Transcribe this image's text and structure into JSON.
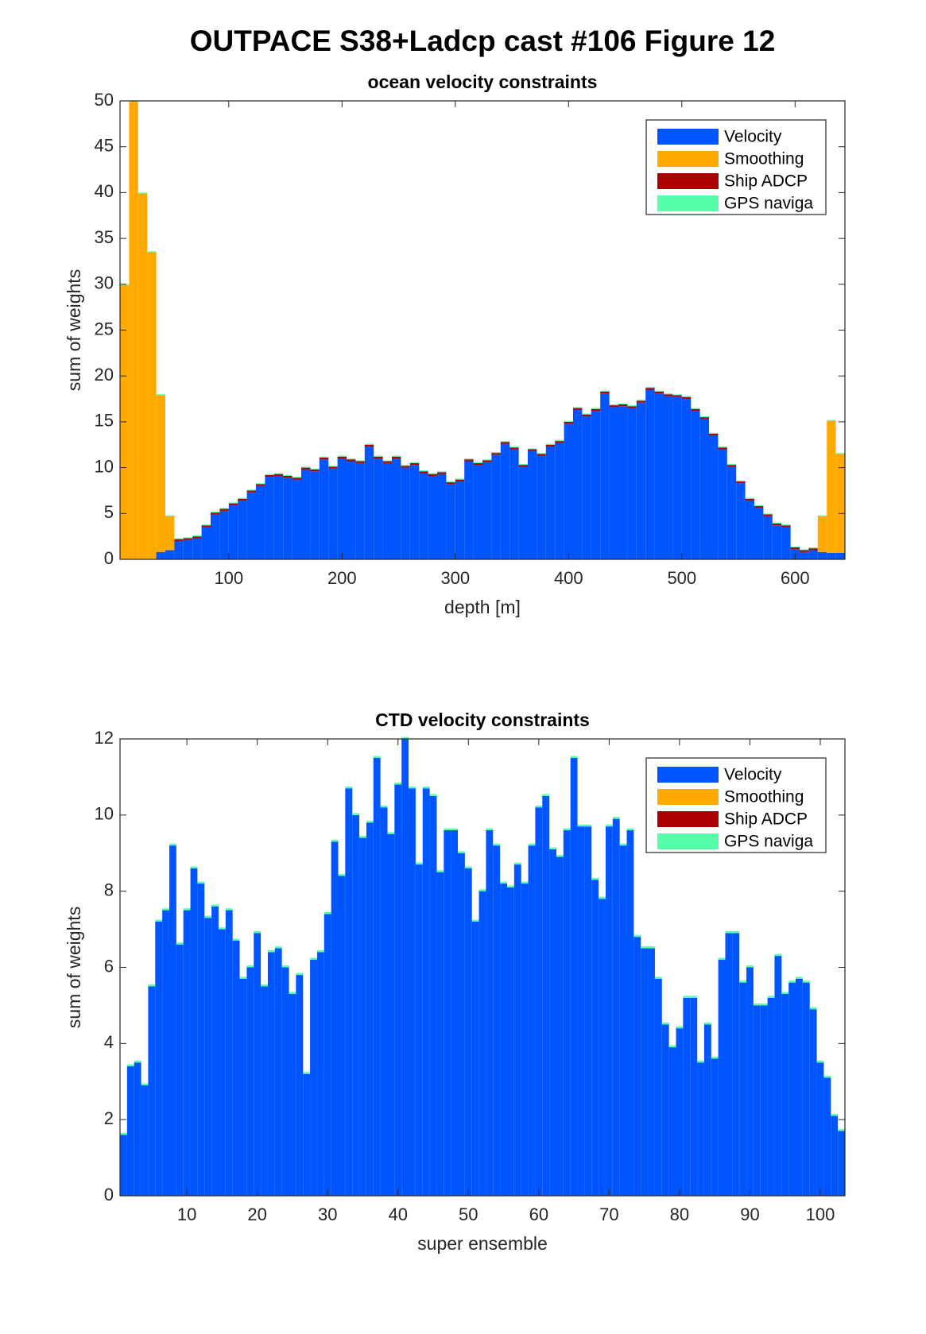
{
  "chart_data": [
    {
      "type": "bar",
      "stacked": true,
      "suptitle": "OUTPACE S38+Ladcp cast #106  Figure 12",
      "title": "ocean velocity constraints",
      "xlabel": "depth [m]",
      "ylabel": "sum of weights",
      "x": [
        8,
        16,
        24,
        32,
        40,
        48,
        56,
        64,
        72,
        80,
        88,
        96,
        104,
        112,
        120,
        128,
        136,
        144,
        152,
        160,
        168,
        176,
        184,
        192,
        200,
        208,
        216,
        224,
        232,
        240,
        248,
        256,
        264,
        272,
        280,
        288,
        296,
        304,
        312,
        320,
        328,
        336,
        344,
        352,
        360,
        368,
        376,
        384,
        392,
        400,
        408,
        416,
        424,
        432,
        440,
        448,
        456,
        464,
        472,
        480,
        488,
        496,
        504,
        512,
        520,
        528,
        536,
        544,
        552,
        560,
        568,
        576,
        584,
        592,
        600,
        608,
        616,
        624,
        632,
        640
      ],
      "xlim": [
        4,
        644
      ],
      "xticks": [
        100,
        200,
        300,
        400,
        500,
        600
      ],
      "ylim": [
        0,
        50
      ],
      "yticks": [
        0,
        5,
        10,
        15,
        20,
        25,
        30,
        35,
        40,
        45,
        50
      ],
      "legend": "upper right",
      "series": [
        {
          "name": "Velocity",
          "color": "#0055ff",
          "values": [
            0,
            0,
            0,
            0,
            0.8,
            1.0,
            2.0,
            2.1,
            2.3,
            3.5,
            4.9,
            5.3,
            5.9,
            6.4,
            7.3,
            8.0,
            9.0,
            9.1,
            8.9,
            8.7,
            9.8,
            9.6,
            10.9,
            9.9,
            11.0,
            10.7,
            10.5,
            12.3,
            11.0,
            10.5,
            11.0,
            10.0,
            10.3,
            9.4,
            9.1,
            9.3,
            8.2,
            8.5,
            10.7,
            10.3,
            10.6,
            11.4,
            12.6,
            12.0,
            10.1,
            11.8,
            11.3,
            12.3,
            12.7,
            14.8,
            16.3,
            15.6,
            16.2,
            18.1,
            16.6,
            16.7,
            16.5,
            17.1,
            18.5,
            18.1,
            17.8,
            17.7,
            17.5,
            16.2,
            15.3,
            13.5,
            12.0,
            10.1,
            8.3,
            6.4,
            5.6,
            4.7,
            3.7,
            3.5,
            1.1,
            0.8,
            1.0,
            0.8,
            0.7,
            0.7
          ]
        },
        {
          "name": "Smoothing",
          "color": "#ffaa00",
          "values": [
            29.9,
            49.9,
            39.9,
            33.5,
            17.1,
            3.7,
            0,
            0,
            0,
            0,
            0,
            0,
            0,
            0,
            0,
            0,
            0,
            0,
            0,
            0,
            0,
            0,
            0,
            0,
            0,
            0,
            0,
            0,
            0,
            0,
            0,
            0,
            0,
            0,
            0,
            0,
            0,
            0,
            0,
            0,
            0,
            0,
            0,
            0,
            0,
            0,
            0,
            0,
            0,
            0,
            0,
            0,
            0,
            0,
            0,
            0,
            0,
            0,
            0,
            0,
            0,
            0,
            0,
            0,
            0,
            0,
            0,
            0,
            0,
            0,
            0,
            0,
            0,
            0,
            0,
            0,
            0,
            3.9,
            14.4,
            10.8
          ]
        },
        {
          "name": "Ship ADCP",
          "color": "#aa0000",
          "values": [
            0,
            0,
            0,
            0,
            0,
            0,
            0.2,
            0.2,
            0.2,
            0.2,
            0.2,
            0.2,
            0.2,
            0.2,
            0.2,
            0.2,
            0.2,
            0.2,
            0.2,
            0.2,
            0.2,
            0.2,
            0.2,
            0.2,
            0.2,
            0.2,
            0.2,
            0.2,
            0.2,
            0.2,
            0.2,
            0.2,
            0.2,
            0.2,
            0.2,
            0.2,
            0.2,
            0.2,
            0.2,
            0.2,
            0.2,
            0.2,
            0.2,
            0.2,
            0.2,
            0.2,
            0.2,
            0.2,
            0.2,
            0.2,
            0.2,
            0.2,
            0.2,
            0.2,
            0.2,
            0.2,
            0.2,
            0.2,
            0.2,
            0.2,
            0.2,
            0.2,
            0.2,
            0.2,
            0.2,
            0.2,
            0.2,
            0.2,
            0.2,
            0.2,
            0.2,
            0.2,
            0.2,
            0.2,
            0.2,
            0.2,
            0.2,
            0,
            0,
            0
          ]
        },
        {
          "name": "GPS naviga",
          "color": "#55ffaa",
          "values": [
            0.1,
            0.1,
            0.1,
            0.1,
            0.1,
            0.1,
            0.1,
            0.1,
            0.1,
            0.1,
            0.1,
            0.1,
            0.1,
            0.1,
            0.1,
            0.1,
            0.1,
            0.1,
            0.1,
            0.1,
            0.1,
            0.1,
            0.1,
            0.1,
            0.1,
            0.1,
            0.1,
            0.1,
            0.1,
            0.1,
            0.1,
            0.1,
            0.1,
            0.1,
            0.1,
            0.1,
            0.1,
            0.1,
            0.1,
            0.1,
            0.1,
            0.1,
            0.1,
            0.1,
            0.1,
            0.1,
            0.1,
            0.1,
            0.1,
            0.1,
            0.1,
            0.1,
            0.1,
            0.1,
            0.1,
            0.1,
            0.1,
            0.1,
            0.1,
            0.1,
            0.1,
            0.1,
            0.1,
            0.1,
            0.1,
            0.1,
            0.1,
            0.1,
            0.1,
            0.1,
            0.1,
            0.1,
            0.1,
            0.1,
            0.1,
            0.1,
            0.1,
            0.1,
            0.1,
            0.1
          ]
        }
      ]
    },
    {
      "type": "bar",
      "stacked": true,
      "title": "CTD velocity constraints",
      "xlabel": "super ensemble",
      "ylabel": "sum of weights",
      "x": [
        1,
        2,
        3,
        4,
        5,
        6,
        7,
        8,
        9,
        10,
        11,
        12,
        13,
        14,
        15,
        16,
        17,
        18,
        19,
        20,
        21,
        22,
        23,
        24,
        25,
        26,
        27,
        28,
        29,
        30,
        31,
        32,
        33,
        34,
        35,
        36,
        37,
        38,
        39,
        40,
        41,
        42,
        43,
        44,
        45,
        46,
        47,
        48,
        49,
        50,
        51,
        52,
        53,
        54,
        55,
        56,
        57,
        58,
        59,
        60,
        61,
        62,
        63,
        64,
        65,
        66,
        67,
        68,
        69,
        70,
        71,
        72,
        73,
        74,
        75,
        76,
        77,
        78,
        79,
        80,
        81,
        82,
        83,
        84,
        85,
        86,
        87,
        88,
        89,
        90,
        91,
        92,
        93,
        94,
        95,
        96,
        97,
        98,
        99,
        100,
        101,
        102,
        103
      ],
      "xlim": [
        0.5,
        103.5
      ],
      "xticks": [
        10,
        20,
        30,
        40,
        50,
        60,
        70,
        80,
        90,
        100
      ],
      "ylim": [
        0,
        12
      ],
      "yticks": [
        0,
        2,
        4,
        6,
        8,
        10,
        12
      ],
      "legend": "upper right",
      "series": [
        {
          "name": "Velocity",
          "color": "#0055ff",
          "values": [
            1.6,
            3.4,
            3.5,
            2.9,
            5.5,
            7.2,
            7.5,
            9.2,
            6.6,
            7.5,
            8.6,
            8.2,
            7.3,
            7.6,
            7.0,
            7.5,
            6.7,
            5.7,
            6.0,
            6.9,
            5.5,
            6.4,
            6.5,
            6.0,
            5.3,
            5.8,
            3.2,
            6.2,
            6.4,
            7.4,
            9.3,
            8.4,
            10.7,
            10.0,
            9.4,
            9.8,
            11.5,
            10.2,
            9.5,
            10.8,
            12.0,
            10.7,
            8.7,
            10.7,
            10.5,
            8.5,
            9.6,
            9.6,
            9.0,
            8.6,
            7.2,
            8.0,
            9.6,
            9.2,
            8.2,
            8.1,
            8.7,
            8.2,
            9.2,
            10.2,
            10.5,
            9.1,
            8.9,
            9.6,
            11.5,
            9.7,
            9.7,
            8.3,
            7.8,
            9.7,
            9.9,
            9.2,
            9.6,
            6.8,
            6.5,
            6.5,
            5.7,
            4.5,
            3.9,
            4.4,
            5.2,
            5.2,
            3.5,
            4.5,
            3.6,
            6.2,
            6.9,
            6.9,
            5.6,
            6.0,
            5.0,
            5.0,
            5.2,
            6.3,
            5.3,
            5.6,
            5.7,
            5.6,
            4.9,
            3.5,
            3.1,
            2.1,
            1.7
          ]
        },
        {
          "name": "Smoothing",
          "color": "#ffaa00",
          "values": [
            0,
            0,
            0,
            0,
            0,
            0,
            0,
            0,
            0,
            0,
            0,
            0,
            0,
            0,
            0,
            0,
            0,
            0,
            0,
            0,
            0,
            0,
            0,
            0,
            0,
            0,
            0,
            0,
            0,
            0,
            0,
            0,
            0,
            0,
            0,
            0,
            0,
            0,
            0,
            0,
            0,
            0,
            0,
            0,
            0,
            0,
            0,
            0,
            0,
            0,
            0,
            0,
            0,
            0,
            0,
            0,
            0,
            0,
            0,
            0,
            0,
            0,
            0,
            0,
            0,
            0,
            0,
            0,
            0,
            0,
            0,
            0,
            0,
            0,
            0,
            0,
            0,
            0,
            0,
            0,
            0,
            0,
            0,
            0,
            0,
            0,
            0,
            0,
            0,
            0,
            0,
            0,
            0,
            0,
            0,
            0,
            0,
            0,
            0,
            0,
            0,
            0,
            0
          ]
        },
        {
          "name": "Ship ADCP",
          "color": "#aa0000",
          "values": [
            0,
            0,
            0,
            0,
            0,
            0,
            0,
            0,
            0,
            0,
            0,
            0,
            0,
            0,
            0,
            0,
            0,
            0,
            0,
            0,
            0,
            0,
            0,
            0,
            0,
            0,
            0,
            0,
            0,
            0,
            0,
            0,
            0,
            0,
            0,
            0,
            0,
            0,
            0,
            0,
            0,
            0,
            0,
            0,
            0,
            0,
            0,
            0,
            0,
            0,
            0,
            0,
            0,
            0,
            0,
            0,
            0,
            0,
            0,
            0,
            0,
            0,
            0,
            0,
            0,
            0,
            0,
            0,
            0,
            0,
            0,
            0,
            0,
            0,
            0,
            0,
            0,
            0,
            0,
            0,
            0,
            0,
            0,
            0,
            0,
            0,
            0,
            0,
            0,
            0,
            0,
            0,
            0,
            0,
            0,
            0,
            0,
            0,
            0,
            0,
            0,
            0,
            0
          ]
        },
        {
          "name": "GPS naviga",
          "color": "#55ffaa",
          "values": [
            0.05,
            0.05,
            0.05,
            0.05,
            0.05,
            0.05,
            0.05,
            0.05,
            0.05,
            0.05,
            0.05,
            0.05,
            0.05,
            0.05,
            0.05,
            0.05,
            0.05,
            0.05,
            0.05,
            0.05,
            0.05,
            0.05,
            0.05,
            0.05,
            0.05,
            0.05,
            0.05,
            0.05,
            0.05,
            0.05,
            0.05,
            0.05,
            0.05,
            0.05,
            0.05,
            0.05,
            0.05,
            0.05,
            0.05,
            0.05,
            0.05,
            0.05,
            0.05,
            0.05,
            0.05,
            0.05,
            0.05,
            0.05,
            0.05,
            0.05,
            0.05,
            0.05,
            0.05,
            0.05,
            0.05,
            0.05,
            0.05,
            0.05,
            0.05,
            0.05,
            0.05,
            0.05,
            0.05,
            0.05,
            0.05,
            0.05,
            0.05,
            0.05,
            0.05,
            0.05,
            0.05,
            0.05,
            0.05,
            0.05,
            0.05,
            0.05,
            0.05,
            0.05,
            0.05,
            0.05,
            0.05,
            0.05,
            0.05,
            0.05,
            0.05,
            0.05,
            0.05,
            0.05,
            0.05,
            0.05,
            0.05,
            0.05,
            0.05,
            0.05,
            0.05,
            0.05,
            0.05,
            0.05,
            0.05,
            0.05,
            0.05,
            0.05,
            0.05
          ]
        }
      ]
    }
  ]
}
